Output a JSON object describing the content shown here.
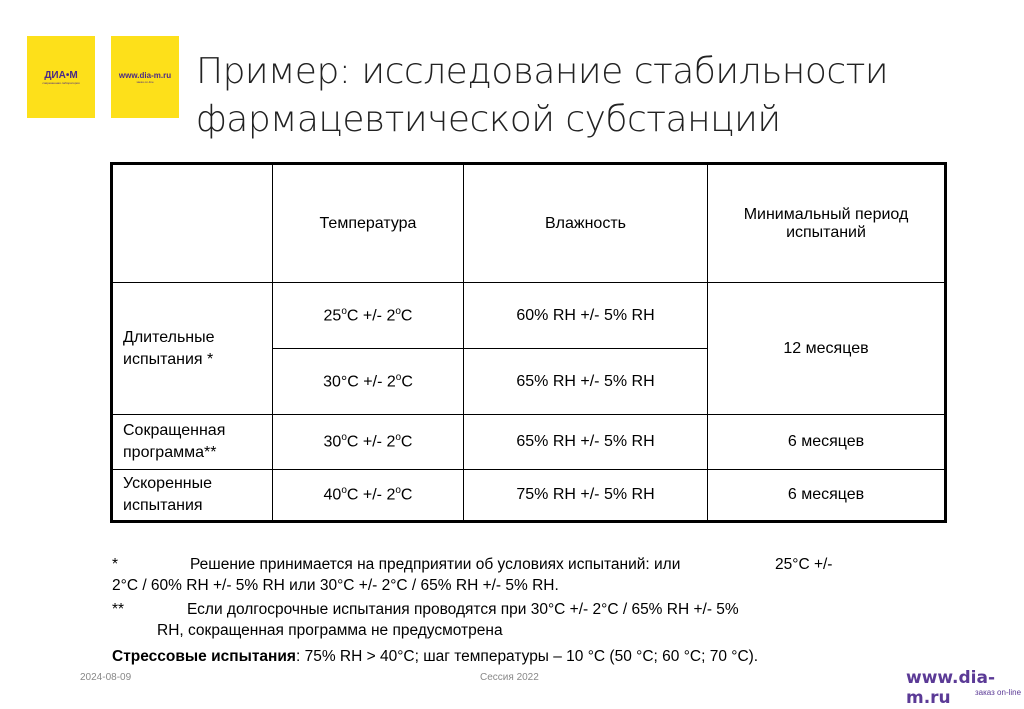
{
  "logos": [
    {
      "text": "ДИА•М",
      "sub": "современная лаборатория"
    },
    {
      "text": "www.dia-m.ru",
      "sub": "заказ on-line"
    }
  ],
  "title": "Пример: исследование стабильности фармацевтической субстанций",
  "table": {
    "headers": [
      "",
      "Температура",
      "Влажность",
      "Минимальный период испытаний"
    ],
    "rows": [
      {
        "label": "Длительные испытания *",
        "temp": [
          [
            "25",
            0
          ],
          [
            "o",
            1
          ],
          [
            "C +/- 2",
            0
          ],
          [
            "o",
            1
          ],
          [
            "C",
            0
          ]
        ],
        "hum": "60% RH +/- 5% RH",
        "period": "12 месяцев"
      },
      {
        "temp": [
          [
            "30°C +/- 2",
            0
          ],
          [
            "o",
            1
          ],
          [
            "C",
            0
          ]
        ],
        "hum": "65% RH +/- 5% RH"
      },
      {
        "label": "Сокращенная программа**",
        "temp": [
          [
            "30",
            0
          ],
          [
            "o",
            1
          ],
          [
            "C +/- 2",
            0
          ],
          [
            "o",
            1
          ],
          [
            "C",
            0
          ]
        ],
        "hum": "65% RH +/- 5% RH",
        "period": "6 месяцев"
      },
      {
        "label": "Ускоренные испытания",
        "temp": [
          [
            "40",
            0
          ],
          [
            "o",
            1
          ],
          [
            "C +/- 2",
            0
          ],
          [
            "o",
            1
          ],
          [
            "C",
            0
          ]
        ],
        "hum": "75% RH +/- 5% RH",
        "period": "6 месяцев"
      }
    ]
  },
  "notes": {
    "n1_mark": "*",
    "n1_line1": "Решение принимается на предприятии  об условиях испытаний:  или",
    "n1_tail": "25°C +/-",
    "n1_line2": "2°C / 60% RH +/- 5% RH или  30°C +/- 2°C / 65% RH +/- 5% RH.",
    "n2_mark": "**",
    "n2_line1": "Если долгосрочные испытания проводятся при 30°C +/- 2°C / 65% RH +/- 5%",
    "n2_line2": "RH, сокращенная программа  не предусмотрена",
    "stress_label": "Стрессовые испытания",
    "stress_text": ": 75% RH > 40°C; шаг температуры  – 10 °C (50 °C; 60 °C; 70 °C)."
  },
  "footer": {
    "date": "2024-08-09",
    "session": "Сессия 2022",
    "brand": "www.dia-m.ru",
    "brand_sub": "заказ on-line"
  },
  "colors": {
    "logo_bg": "#fde01a",
    "brand": "#5b3a96"
  }
}
